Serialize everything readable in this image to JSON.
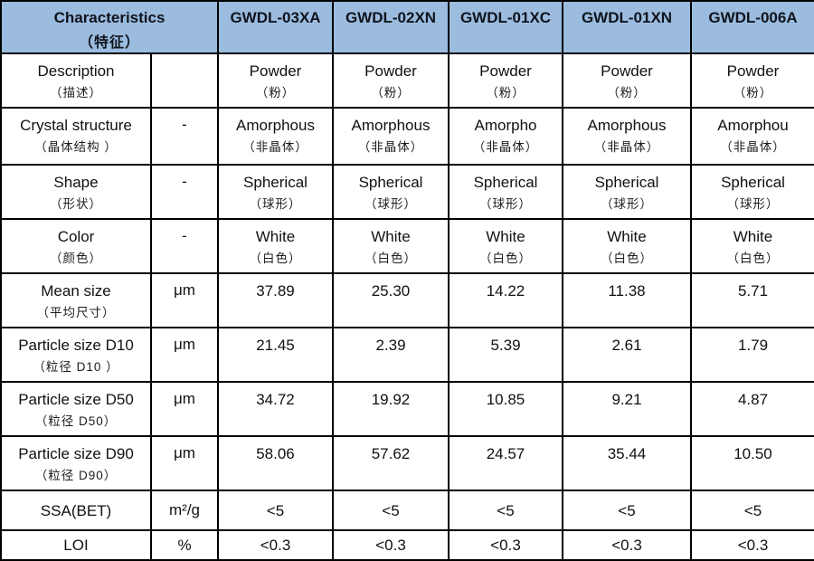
{
  "table": {
    "colors": {
      "header_bg": "#9BBCDF",
      "border": "#000000",
      "body_bg": "#ffffff"
    },
    "header": {
      "label": "Characteristics",
      "label_cn": "（特征）",
      "products": [
        "GWDL-03XA",
        "GWDL-02XN",
        "GWDL-01XC",
        "GWDL-01XN",
        "GWDL-006A"
      ]
    },
    "rows": [
      {
        "label": "Description",
        "label_cn": "（描述）",
        "unit": "",
        "values": [
          {
            "text": "Powder",
            "text_cn": "（粉）"
          },
          {
            "text": "Powder",
            "text_cn": "（粉）"
          },
          {
            "text": "Powder",
            "text_cn": "（粉）"
          },
          {
            "text": "Powder",
            "text_cn": "（粉）"
          },
          {
            "text": "Powder",
            "text_cn": "（粉）"
          }
        ]
      },
      {
        "label": "Crystal structure",
        "label_cn": "（晶体结构 ）",
        "unit": "-",
        "values": [
          {
            "text": "Amorphous",
            "text_cn": "（非晶体）"
          },
          {
            "text": "Amorphous",
            "text_cn": "（非晶体）"
          },
          {
            "text": "Amorpho",
            "text_cn": "（非晶体）"
          },
          {
            "text": "Amorphous",
            "text_cn": "（非晶体）"
          },
          {
            "text": "Amorphou",
            "text_cn": "（非晶体）"
          }
        ]
      },
      {
        "label": "Shape",
        "label_cn": "（形状）",
        "unit": "-",
        "values": [
          {
            "text": "Spherical",
            "text_cn": "（球形）"
          },
          {
            "text": "Spherical",
            "text_cn": "（球形）"
          },
          {
            "text": "Spherical",
            "text_cn": "（球形）"
          },
          {
            "text": "Spherical",
            "text_cn": "（球形）"
          },
          {
            "text": "Spherical",
            "text_cn": "（球形）"
          }
        ]
      },
      {
        "label": "Color",
        "label_cn": "（颜色）",
        "unit": "-",
        "values": [
          {
            "text": "White",
            "text_cn": "（白色）"
          },
          {
            "text": "White",
            "text_cn": "（白色）"
          },
          {
            "text": "White",
            "text_cn": "（白色）"
          },
          {
            "text": "White",
            "text_cn": "（白色）"
          },
          {
            "text": "White",
            "text_cn": "（白色）"
          }
        ]
      },
      {
        "label": "Mean size",
        "label_cn": "（平均尺寸）",
        "unit": "μm",
        "values": [
          {
            "text": "37.89"
          },
          {
            "text": "25.30"
          },
          {
            "text": "14.22"
          },
          {
            "text": "11.38"
          },
          {
            "text": "5.71"
          }
        ]
      },
      {
        "label": "Particle size D10",
        "label_cn": "（粒径 D10 ）",
        "unit": "μm",
        "values": [
          {
            "text": "21.45"
          },
          {
            "text": "2.39"
          },
          {
            "text": "5.39"
          },
          {
            "text": "2.61"
          },
          {
            "text": "1.79"
          }
        ]
      },
      {
        "label": "Particle size D50",
        "label_cn": "（粒径 D50）",
        "unit": "μm",
        "values": [
          {
            "text": "34.72"
          },
          {
            "text": "19.92"
          },
          {
            "text": "10.85"
          },
          {
            "text": "9.21"
          },
          {
            "text": "4.87"
          }
        ]
      },
      {
        "label": "Particle size D90",
        "label_cn": "（粒径 D90）",
        "unit": "μm",
        "values": [
          {
            "text": "58.06"
          },
          {
            "text": "57.62"
          },
          {
            "text": "24.57"
          },
          {
            "text": "35.44"
          },
          {
            "text": "10.50"
          }
        ]
      },
      {
        "label": "SSA(BET)",
        "label_cn": "",
        "unit": "m²/g",
        "values": [
          {
            "text": "<5"
          },
          {
            "text": "<5"
          },
          {
            "text": "<5"
          },
          {
            "text": "<5"
          },
          {
            "text": "<5"
          }
        ]
      },
      {
        "label": "LOI",
        "label_cn": "",
        "unit": "%",
        "values": [
          {
            "text": "<0.3"
          },
          {
            "text": "<0.3"
          },
          {
            "text": "<0.3"
          },
          {
            "text": "<0.3"
          },
          {
            "text": "<0.3"
          }
        ]
      }
    ]
  }
}
